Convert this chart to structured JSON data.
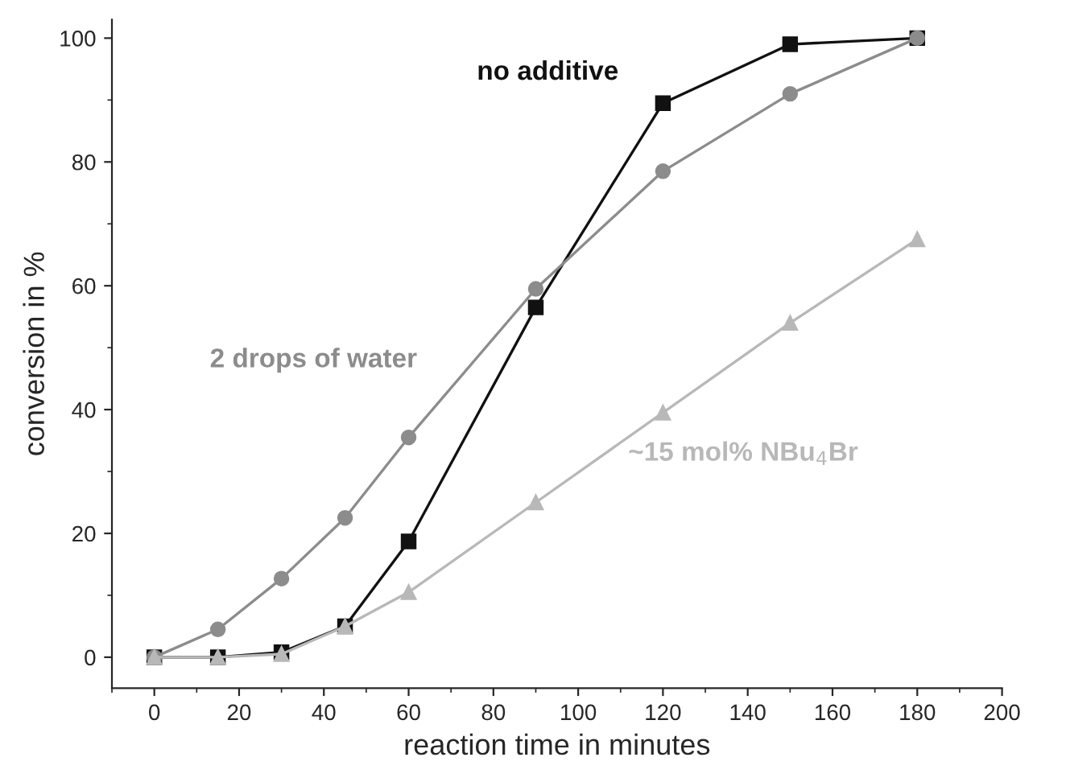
{
  "chart_data": {
    "type": "line",
    "xlabel": "reaction time in minutes",
    "ylabel": "conversion in %",
    "x": [
      0,
      15,
      30,
      45,
      60,
      90,
      120,
      150,
      180
    ],
    "series": [
      {
        "name": "no additive",
        "color": "#111111",
        "marker": "square",
        "values": [
          0,
          0,
          0.8,
          5,
          18.7,
          56.5,
          89.5,
          99,
          100
        ]
      },
      {
        "name": "2 drops of water",
        "color": "#8c8c8c",
        "marker": "circle",
        "values": [
          0,
          4.5,
          12.7,
          22.5,
          35.5,
          59.5,
          78.5,
          91,
          100
        ]
      },
      {
        "name": "~15 mol% NBu$_{4}$Br",
        "color": "#b8b8b8",
        "marker": "triangle",
        "values": [
          0,
          0,
          0.5,
          5,
          10.5,
          25,
          39.5,
          54,
          67.5
        ]
      }
    ],
    "xlim": [
      -10,
      200
    ],
    "xticks": [
      0,
      20,
      40,
      60,
      80,
      100,
      120,
      140,
      160,
      180,
      200
    ],
    "ylim": [
      -5,
      103
    ],
    "yticks": [
      0,
      20,
      40,
      60,
      80,
      100
    ],
    "grid": false,
    "legend": false,
    "line_style": "solid"
  }
}
